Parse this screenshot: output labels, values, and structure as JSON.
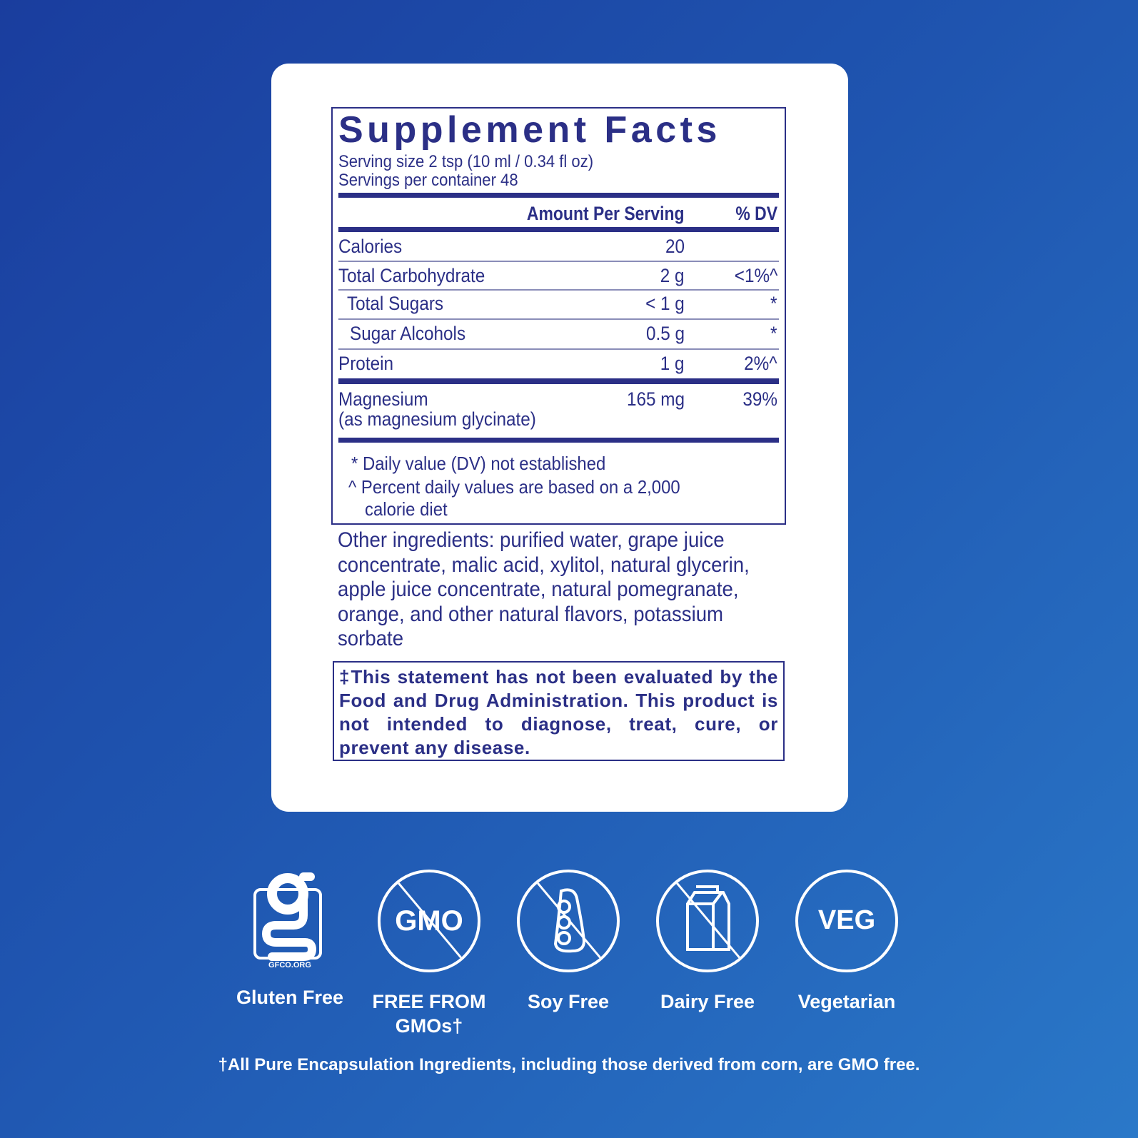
{
  "facts": {
    "title": "Supplement Facts",
    "serving_size": "Serving size  2 tsp (10 ml / 0.34 fl oz)",
    "servings_per_container": "Servings per container  48",
    "header_amount": "Amount Per Serving",
    "header_dv": "% DV",
    "rows": [
      {
        "name": "Calories",
        "amount": "20",
        "dv": ""
      },
      {
        "name": "Total Carbohydrate",
        "amount": "2 g",
        "dv": "<1%^"
      },
      {
        "name": "Total Sugars",
        "amount": "< 1 g",
        "dv": "*"
      },
      {
        "name": "Sugar Alcohols",
        "amount": "0.5 g",
        "dv": "*"
      },
      {
        "name": "Protein",
        "amount": "1 g",
        "dv": "2%^"
      },
      {
        "name": "Magnesium",
        "sub": "(as magnesium glycinate)",
        "amount": "165 mg",
        "dv": "39%"
      }
    ],
    "footnote_1": "* Daily value (DV) not established",
    "footnote_2": "^ Percent daily values are based on a 2,000",
    "footnote_2b": "calorie diet"
  },
  "other_ingredients": "Other ingredients: purified water, grape juice concentrate, malic acid, xylitol, natural glycerin, apple juice concentrate, natural pomegranate, orange, and other natural flavors, potassium sorbate",
  "disclaimer": "‡This statement has not been evaluated by the Food and Drug Administration. This product is not intended to diagnose, treat, cure, or prevent any disease.",
  "badges": [
    {
      "icon": "gfco-gluten-free-logo",
      "logo_text": "GFCO.ORG",
      "label": "Gluten Free"
    },
    {
      "icon": "no-gmo-icon",
      "icon_text": "GMO",
      "label": "FREE FROM GMOs†"
    },
    {
      "icon": "no-soy-icon",
      "label": "Soy Free"
    },
    {
      "icon": "no-dairy-icon",
      "label": "Dairy Free"
    },
    {
      "icon": "veg-icon",
      "icon_text": "VEG",
      "label": "Vegetarian"
    }
  ],
  "gmo_note": "†All Pure Encapsulation Ingredients, including those derived from corn, are GMO free.",
  "colors": {
    "label_navy": "#2b2f86",
    "background": "#1f55b0"
  }
}
